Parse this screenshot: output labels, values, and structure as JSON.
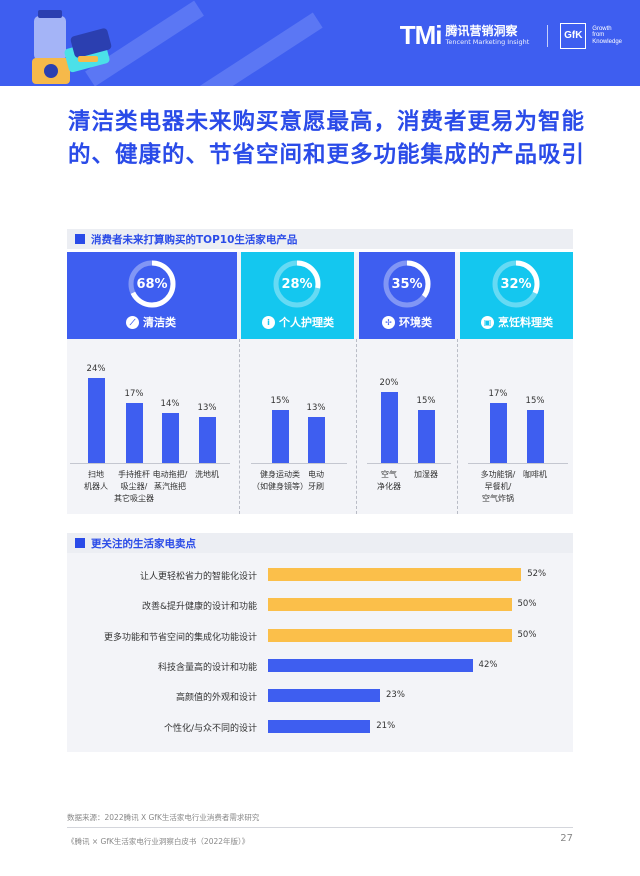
{
  "header": {
    "brand_tmi": "TMi",
    "brand_cn": "腾讯营销洞察",
    "brand_en": "Tencent Marketing Insight",
    "brand_gfk": "GfK",
    "gfk_tagline": "Growth\nfrom\nKnowledge"
  },
  "title": "清洁类电器未来购买意愿最高，消费者更易为智能的、健康的、节省空间和更多功能集成的产品吸引",
  "section1": {
    "heading": "消费者未来打算购买的TOP10生活家电产品",
    "categories": [
      {
        "name": "清洁类",
        "percent": 68,
        "percent_label": "68%",
        "icon": "broom-icon",
        "color": "#3e5ef0"
      },
      {
        "name": "个人护理类",
        "percent": 28,
        "percent_label": "28%",
        "icon": "info-person-icon",
        "color": "#14c7ef"
      },
      {
        "name": "环境类",
        "percent": 35,
        "percent_label": "35%",
        "icon": "fan-icon",
        "color": "#3e5ef0"
      },
      {
        "name": "烹饪料理类",
        "percent": 32,
        "percent_label": "32%",
        "icon": "cooker-icon",
        "color": "#14c7ef"
      }
    ]
  },
  "chart_data": [
    {
      "type": "bar",
      "title": "消费者未来打算购买的TOP10生活家电产品",
      "categories": [
        "扫地\n机器人",
        "手持推杆\n吸尘器/\n其它吸尘器",
        "电动拖把/\n蒸汽拖把",
        "洗地机",
        "健身运动类\n（如健身镜等）",
        "电动\n牙刷",
        "空气\n净化器",
        "加湿器",
        "多功能锅/\n早餐机/\n空气炸锅",
        "咖啡机"
      ],
      "values": [
        24,
        17,
        14,
        13,
        15,
        13,
        20,
        15,
        17,
        15
      ],
      "value_labels": [
        "24%",
        "17%",
        "14%",
        "13%",
        "15%",
        "13%",
        "20%",
        "15%",
        "17%",
        "15%"
      ],
      "groups": [
        "清洁类",
        "清洁类",
        "清洁类",
        "清洁类",
        "个人护理类",
        "个人护理类",
        "环境类",
        "环境类",
        "烹饪料理类",
        "烹饪料理类"
      ],
      "bar_color": "#3e5ef0",
      "ylim": [
        0,
        24
      ]
    },
    {
      "type": "bar",
      "orientation": "horizontal",
      "title": "更关注的生活家电卖点",
      "categories": [
        "让人更轻松省力的智能化设计",
        "改善&提升健康的设计和功能",
        "更多功能和节省空间的集成化功能设计",
        "科技含量高的设计和功能",
        "高颜值的外观和设计",
        "个性化/与众不同的设计"
      ],
      "values": [
        52,
        50,
        50,
        42,
        23,
        21
      ],
      "value_labels": [
        "52%",
        "50%",
        "50%",
        "42%",
        "23%",
        "21%"
      ],
      "colors": [
        "#fbbf4a",
        "#fbbf4a",
        "#fbbf4a",
        "#3e5ef0",
        "#3e5ef0",
        "#3e5ef0"
      ],
      "xlim": [
        0,
        52
      ]
    }
  ],
  "section2": {
    "heading": "更关注的生活家电卖点"
  },
  "footer": {
    "source": "数据来源：2022腾讯 X GfK生活家电行业消费者需求研究",
    "publication": "《腾讯 × GfK生活家电行业洞察白皮书（2022年版）》",
    "page_number": "27"
  }
}
